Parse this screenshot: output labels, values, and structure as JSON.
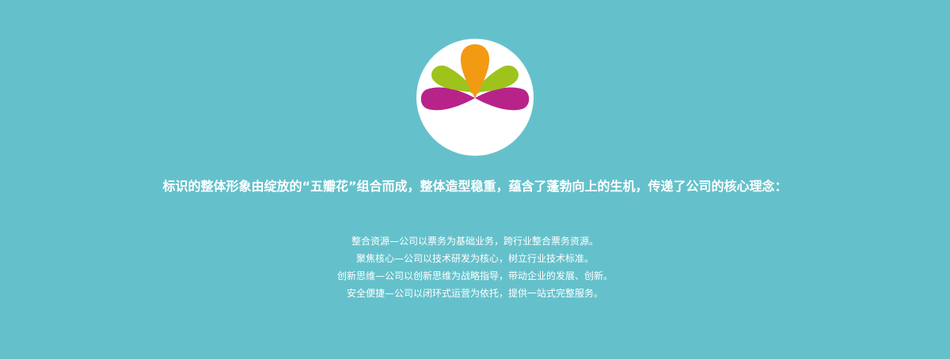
{
  "logo": {
    "icon": "five-petal-flower-logo",
    "colors": {
      "orange": "#f29a12",
      "green": "#9ec31d",
      "magenta": "#b8238a",
      "background": "#ffffff"
    }
  },
  "tagline": "标识的整体形象由绽放的“五瓣花”组合而成，整体造型稳重，蕴含了蓬勃向上的生机，传递了公司的核心理念：",
  "principles": [
    "整合资源—公司以票务为基础业务，跨行业整合票务资源。",
    "聚焦核心—公司以技术研发为核心，树立行业技术标准。",
    "创新思维—公司以创新思维为战略指导，带动企业的发展、创新。",
    "安全便捷—公司以闭环式运营为依托，提供一站式完整服务。"
  ],
  "page": {
    "background": "#64c1cb",
    "text_color": "#ffffff"
  }
}
